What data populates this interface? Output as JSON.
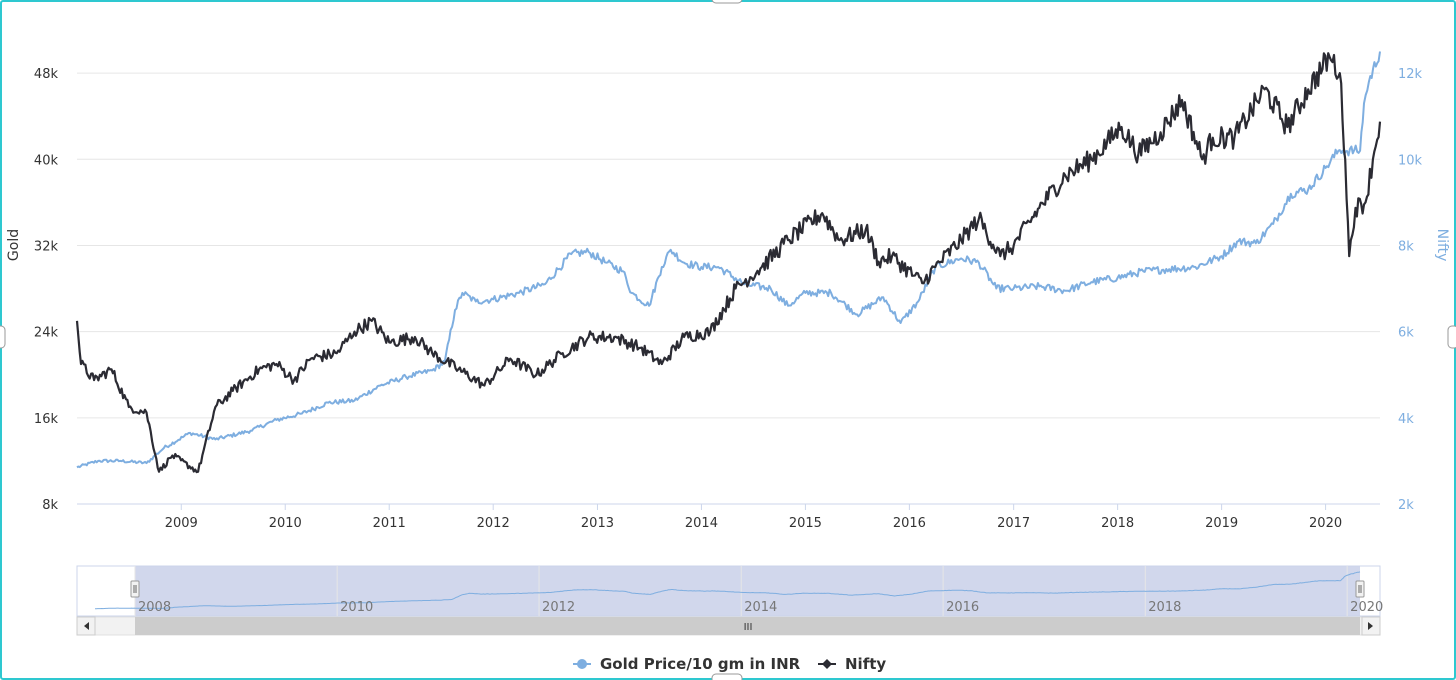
{
  "chart_data": {
    "type": "line",
    "title": "",
    "y_axes": {
      "left": {
        "title": "Gold",
        "min": 8000,
        "max": 52000,
        "ticks": [
          "8k",
          "16k",
          "24k",
          "32k",
          "40k",
          "48k"
        ]
      },
      "right": {
        "title": "Nifty",
        "min": 2000,
        "max": 13000,
        "ticks": [
          "2k",
          "4k",
          "6k",
          "8k",
          "10k",
          "12k"
        ]
      }
    },
    "x_ticks": [
      "2009",
      "2010",
      "2011",
      "2012",
      "2013",
      "2014",
      "2015",
      "2016",
      "2017",
      "2018",
      "2019",
      "2020"
    ],
    "navigator_labels": [
      "2008",
      "2010",
      "2012",
      "2014",
      "2016",
      "2018",
      "2020"
    ],
    "scrollbar_glyph": "III",
    "series": [
      {
        "name": "Gold Price/10 gm in INR",
        "axis": "right",
        "color": "#7eaee0",
        "points": [
          [
            "2008-01-01",
            2850
          ],
          [
            "2008-03-15",
            3000
          ],
          [
            "2008-06-01",
            3000
          ],
          [
            "2008-09-01",
            2950
          ],
          [
            "2008-11-01",
            3300
          ],
          [
            "2009-02-01",
            3650
          ],
          [
            "2009-05-01",
            3500
          ],
          [
            "2009-09-01",
            3700
          ],
          [
            "2009-12-01",
            3950
          ],
          [
            "2010-03-01",
            4100
          ],
          [
            "2010-06-01",
            4350
          ],
          [
            "2010-09-01",
            4400
          ],
          [
            "2010-12-01",
            4750
          ],
          [
            "2011-03-01",
            4950
          ],
          [
            "2011-06-01",
            5100
          ],
          [
            "2011-07-15",
            5300
          ],
          [
            "2011-08-20",
            6500
          ],
          [
            "2011-09-15",
            6900
          ],
          [
            "2011-11-01",
            6700
          ],
          [
            "2012-01-01",
            6750
          ],
          [
            "2012-04-01",
            6900
          ],
          [
            "2012-07-01",
            7100
          ],
          [
            "2012-10-01",
            7800
          ],
          [
            "2012-12-01",
            7850
          ],
          [
            "2013-02-01",
            7600
          ],
          [
            "2013-04-01",
            7400
          ],
          [
            "2013-05-01",
            6900
          ],
          [
            "2013-07-01",
            6600
          ],
          [
            "2013-08-15",
            7500
          ],
          [
            "2013-09-15",
            7900
          ],
          [
            "2013-11-01",
            7600
          ],
          [
            "2014-01-01",
            7500
          ],
          [
            "2014-03-01",
            7500
          ],
          [
            "2014-06-01",
            7100
          ],
          [
            "2014-09-01",
            7000
          ],
          [
            "2014-11-01",
            6600
          ],
          [
            "2015-01-01",
            6900
          ],
          [
            "2015-04-01",
            6900
          ],
          [
            "2015-07-01",
            6400
          ],
          [
            "2015-10-01",
            6800
          ],
          [
            "2015-12-01",
            6200
          ],
          [
            "2016-02-01",
            6700
          ],
          [
            "2016-04-01",
            7500
          ],
          [
            "2016-07-01",
            7700
          ],
          [
            "2016-09-01",
            7600
          ],
          [
            "2016-11-01",
            7000
          ],
          [
            "2017-01-01",
            7000
          ],
          [
            "2017-04-01",
            7050
          ],
          [
            "2017-07-01",
            6950
          ],
          [
            "2017-10-01",
            7150
          ],
          [
            "2018-01-01",
            7250
          ],
          [
            "2018-04-01",
            7400
          ],
          [
            "2018-07-01",
            7450
          ],
          [
            "2018-10-01",
            7500
          ],
          [
            "2019-01-01",
            7750
          ],
          [
            "2019-03-01",
            8100
          ],
          [
            "2019-05-01",
            8050
          ],
          [
            "2019-07-01",
            8500
          ],
          [
            "2019-09-01",
            9200
          ],
          [
            "2019-11-01",
            9300
          ],
          [
            "2020-01-01",
            9800
          ],
          [
            "2020-02-15",
            10200
          ],
          [
            "2020-03-01",
            10200
          ],
          [
            "2020-05-01",
            10200
          ],
          [
            "2020-05-15",
            11300
          ],
          [
            "2020-06-01",
            11800
          ],
          [
            "2020-07-10",
            12500
          ]
        ]
      },
      {
        "name": "Nifty",
        "axis": "left",
        "color": "#2b2b33",
        "points": [
          [
            "2008-01-01",
            25000
          ],
          [
            "2008-01-15",
            21000
          ],
          [
            "2008-03-01",
            19500
          ],
          [
            "2008-05-01",
            20500
          ],
          [
            "2008-07-01",
            17000
          ],
          [
            "2008-09-01",
            16500
          ],
          [
            "2008-10-15",
            11000
          ],
          [
            "2008-12-01",
            12500
          ],
          [
            "2009-03-01",
            11000
          ],
          [
            "2009-05-01",
            17000
          ],
          [
            "2009-07-01",
            18500
          ],
          [
            "2009-10-01",
            20500
          ],
          [
            "2009-12-01",
            21000
          ],
          [
            "2010-02-01",
            19500
          ],
          [
            "2010-04-01",
            21500
          ],
          [
            "2010-07-01",
            22000
          ],
          [
            "2010-09-01",
            24000
          ],
          [
            "2010-11-01",
            25000
          ],
          [
            "2011-01-01",
            23000
          ],
          [
            "2011-04-01",
            23500
          ],
          [
            "2011-06-01",
            22000
          ],
          [
            "2011-09-01",
            20500
          ],
          [
            "2011-12-01",
            19000
          ],
          [
            "2012-03-01",
            21500
          ],
          [
            "2012-06-01",
            20000
          ],
          [
            "2012-09-01",
            22000
          ],
          [
            "2012-12-01",
            23500
          ],
          [
            "2013-03-01",
            23500
          ],
          [
            "2013-06-01",
            22500
          ],
          [
            "2013-08-15",
            21000
          ],
          [
            "2013-11-01",
            23500
          ],
          [
            "2014-02-01",
            24000
          ],
          [
            "2014-05-01",
            28000
          ],
          [
            "2014-08-01",
            30000
          ],
          [
            "2014-11-01",
            32500
          ],
          [
            "2015-03-01",
            35000
          ],
          [
            "2015-05-01",
            32500
          ],
          [
            "2015-08-01",
            33500
          ],
          [
            "2015-09-15",
            30500
          ],
          [
            "2015-11-01",
            31000
          ],
          [
            "2016-02-15",
            28500
          ],
          [
            "2016-04-01",
            30000
          ],
          [
            "2016-07-01",
            32500
          ],
          [
            "2016-09-01",
            34500
          ],
          [
            "2016-11-15",
            31000
          ],
          [
            "2017-01-01",
            32000
          ],
          [
            "2017-04-01",
            35500
          ],
          [
            "2017-07-01",
            38500
          ],
          [
            "2017-10-01",
            40000
          ],
          [
            "2018-01-15",
            43000
          ],
          [
            "2018-03-15",
            40500
          ],
          [
            "2018-06-01",
            42500
          ],
          [
            "2018-08-15",
            45500
          ],
          [
            "2018-10-25",
            40000
          ],
          [
            "2018-12-01",
            42000
          ],
          [
            "2019-02-15",
            42000
          ],
          [
            "2019-06-01",
            46500
          ],
          [
            "2019-08-20",
            43000
          ],
          [
            "2019-11-01",
            46500
          ],
          [
            "2020-01-15",
            49500
          ],
          [
            "2020-02-20",
            48000
          ],
          [
            "2020-03-10",
            40000
          ],
          [
            "2020-03-24",
            31000
          ],
          [
            "2020-04-15",
            35500
          ],
          [
            "2020-05-20",
            36000
          ],
          [
            "2020-06-15",
            40000
          ],
          [
            "2020-07-10",
            43500
          ]
        ]
      }
    ],
    "grid": true,
    "legend_position": "bottom-center"
  }
}
